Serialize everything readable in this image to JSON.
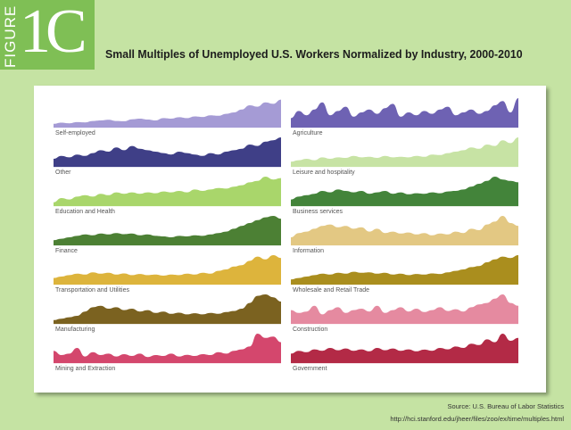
{
  "badge": {
    "word": "FIGURE",
    "number": "1C"
  },
  "title": "Small Multiples of Unemployed U.S. Workers Normalized by Industry, 2000-2010",
  "source": "Source: U.S. Bureau of Labor Statistics",
  "url": "http://hci.stanford.edu/jheer/files/zoo/ex/time/multiples.html",
  "chart_data": {
    "type": "area",
    "title": "Small Multiples of Unemployed U.S. Workers Normalized by Industry, 2000-2010",
    "x_range": [
      2000,
      2010
    ],
    "y_range": [
      0,
      1
    ],
    "normalized": true,
    "grid": false,
    "x_step": 0.5,
    "series": [
      {
        "name": "Self-employed",
        "color": "#a59bd5",
        "values": [
          0.1,
          0.14,
          0.12,
          0.16,
          0.15,
          0.2,
          0.22,
          0.24,
          0.2,
          0.19,
          0.26,
          0.28,
          0.25,
          0.22,
          0.3,
          0.28,
          0.33,
          0.3,
          0.36,
          0.34,
          0.4,
          0.38,
          0.45,
          0.5,
          0.6,
          0.75,
          0.7,
          0.85,
          0.8,
          0.95
        ]
      },
      {
        "name": "Agriculture",
        "color": "#6e62b3",
        "values": [
          0.3,
          0.55,
          0.4,
          0.6,
          0.85,
          0.4,
          0.55,
          0.7,
          0.35,
          0.5,
          0.6,
          0.45,
          0.65,
          0.8,
          0.35,
          0.5,
          0.4,
          0.55,
          0.45,
          0.6,
          0.7,
          0.4,
          0.5,
          0.6,
          0.45,
          0.55,
          0.75,
          0.9,
          0.5,
          1.0
        ]
      },
      {
        "name": "Other",
        "color": "#3f3f87",
        "values": [
          0.25,
          0.35,
          0.3,
          0.4,
          0.35,
          0.45,
          0.55,
          0.5,
          0.65,
          0.55,
          0.7,
          0.6,
          0.55,
          0.5,
          0.45,
          0.4,
          0.5,
          0.45,
          0.4,
          0.35,
          0.45,
          0.4,
          0.5,
          0.55,
          0.6,
          0.75,
          0.7,
          0.85,
          0.9,
          1.0
        ]
      },
      {
        "name": "Leisure and hospitality",
        "color": "#c7e3a4",
        "values": [
          0.15,
          0.2,
          0.25,
          0.2,
          0.3,
          0.25,
          0.3,
          0.28,
          0.35,
          0.3,
          0.32,
          0.28,
          0.35,
          0.3,
          0.32,
          0.3,
          0.35,
          0.32,
          0.4,
          0.38,
          0.45,
          0.5,
          0.55,
          0.65,
          0.6,
          0.75,
          0.7,
          0.9,
          0.8,
          1.0
        ]
      },
      {
        "name": "Education and Health",
        "color": "#a9d66b",
        "values": [
          0.1,
          0.25,
          0.2,
          0.3,
          0.35,
          0.3,
          0.4,
          0.35,
          0.45,
          0.4,
          0.45,
          0.4,
          0.45,
          0.42,
          0.48,
          0.45,
          0.5,
          0.45,
          0.55,
          0.5,
          0.55,
          0.6,
          0.58,
          0.65,
          0.7,
          0.8,
          0.85,
          1.0,
          0.9,
          0.95
        ]
      },
      {
        "name": "Business services",
        "color": "#43843a",
        "values": [
          0.2,
          0.3,
          0.35,
          0.4,
          0.5,
          0.45,
          0.55,
          0.5,
          0.45,
          0.5,
          0.4,
          0.45,
          0.5,
          0.4,
          0.45,
          0.38,
          0.42,
          0.4,
          0.45,
          0.42,
          0.48,
          0.5,
          0.55,
          0.65,
          0.75,
          0.85,
          1.0,
          0.9,
          0.85,
          0.8
        ]
      },
      {
        "name": "Finance",
        "color": "#4c8034",
        "values": [
          0.15,
          0.2,
          0.25,
          0.3,
          0.35,
          0.32,
          0.38,
          0.35,
          0.4,
          0.36,
          0.38,
          0.32,
          0.35,
          0.3,
          0.28,
          0.25,
          0.3,
          0.28,
          0.32,
          0.3,
          0.35,
          0.4,
          0.45,
          0.55,
          0.65,
          0.75,
          0.85,
          0.95,
          1.0,
          0.9
        ]
      },
      {
        "name": "Information",
        "color": "#e3c883",
        "values": [
          0.25,
          0.4,
          0.45,
          0.55,
          0.65,
          0.7,
          0.6,
          0.65,
          0.55,
          0.6,
          0.45,
          0.55,
          0.4,
          0.45,
          0.38,
          0.42,
          0.35,
          0.4,
          0.32,
          0.38,
          0.35,
          0.45,
          0.4,
          0.55,
          0.5,
          0.7,
          0.8,
          1.0,
          0.75,
          0.65
        ]
      },
      {
        "name": "Transportation and Utilities",
        "color": "#ddb43c",
        "values": [
          0.2,
          0.25,
          0.3,
          0.35,
          0.32,
          0.4,
          0.35,
          0.38,
          0.32,
          0.36,
          0.3,
          0.34,
          0.3,
          0.32,
          0.28,
          0.32,
          0.3,
          0.35,
          0.32,
          0.38,
          0.35,
          0.45,
          0.5,
          0.6,
          0.65,
          0.8,
          0.95,
          0.85,
          1.0,
          0.9
        ]
      },
      {
        "name": "Wholesale and Retail Trade",
        "color": "#aa8e1e",
        "values": [
          0.15,
          0.2,
          0.25,
          0.3,
          0.35,
          0.32,
          0.38,
          0.35,
          0.42,
          0.38,
          0.4,
          0.35,
          0.38,
          0.32,
          0.35,
          0.3,
          0.34,
          0.32,
          0.36,
          0.34,
          0.4,
          0.45,
          0.5,
          0.58,
          0.62,
          0.75,
          0.85,
          0.95,
          0.9,
          1.0
        ]
      },
      {
        "name": "Manufacturing",
        "color": "#7b6220",
        "values": [
          0.1,
          0.15,
          0.2,
          0.25,
          0.4,
          0.55,
          0.6,
          0.5,
          0.55,
          0.45,
          0.5,
          0.4,
          0.45,
          0.35,
          0.4,
          0.32,
          0.36,
          0.3,
          0.34,
          0.3,
          0.35,
          0.32,
          0.38,
          0.42,
          0.5,
          0.7,
          0.95,
          1.0,
          0.9,
          0.75
        ]
      },
      {
        "name": "Construction",
        "color": "#e58aa0",
        "values": [
          0.45,
          0.35,
          0.4,
          0.6,
          0.3,
          0.45,
          0.55,
          0.35,
          0.45,
          0.5,
          0.4,
          0.6,
          0.35,
          0.45,
          0.55,
          0.4,
          0.5,
          0.38,
          0.45,
          0.55,
          0.42,
          0.48,
          0.4,
          0.55,
          0.65,
          0.7,
          0.85,
          1.0,
          0.7,
          0.6
        ]
      },
      {
        "name": "Mining and Extraction",
        "color": "#d4476d",
        "values": [
          0.4,
          0.25,
          0.3,
          0.5,
          0.2,
          0.35,
          0.25,
          0.3,
          0.2,
          0.28,
          0.22,
          0.3,
          0.18,
          0.25,
          0.22,
          0.3,
          0.2,
          0.26,
          0.22,
          0.28,
          0.25,
          0.35,
          0.3,
          0.4,
          0.45,
          0.55,
          1.0,
          0.85,
          0.9,
          0.7
        ]
      },
      {
        "name": "Government",
        "color": "#b32a46",
        "values": [
          0.3,
          0.4,
          0.35,
          0.45,
          0.4,
          0.5,
          0.42,
          0.48,
          0.4,
          0.45,
          0.38,
          0.5,
          0.42,
          0.48,
          0.4,
          0.45,
          0.38,
          0.44,
          0.4,
          0.5,
          0.45,
          0.55,
          0.5,
          0.65,
          0.6,
          0.8,
          0.7,
          1.0,
          0.75,
          0.85
        ]
      }
    ]
  }
}
